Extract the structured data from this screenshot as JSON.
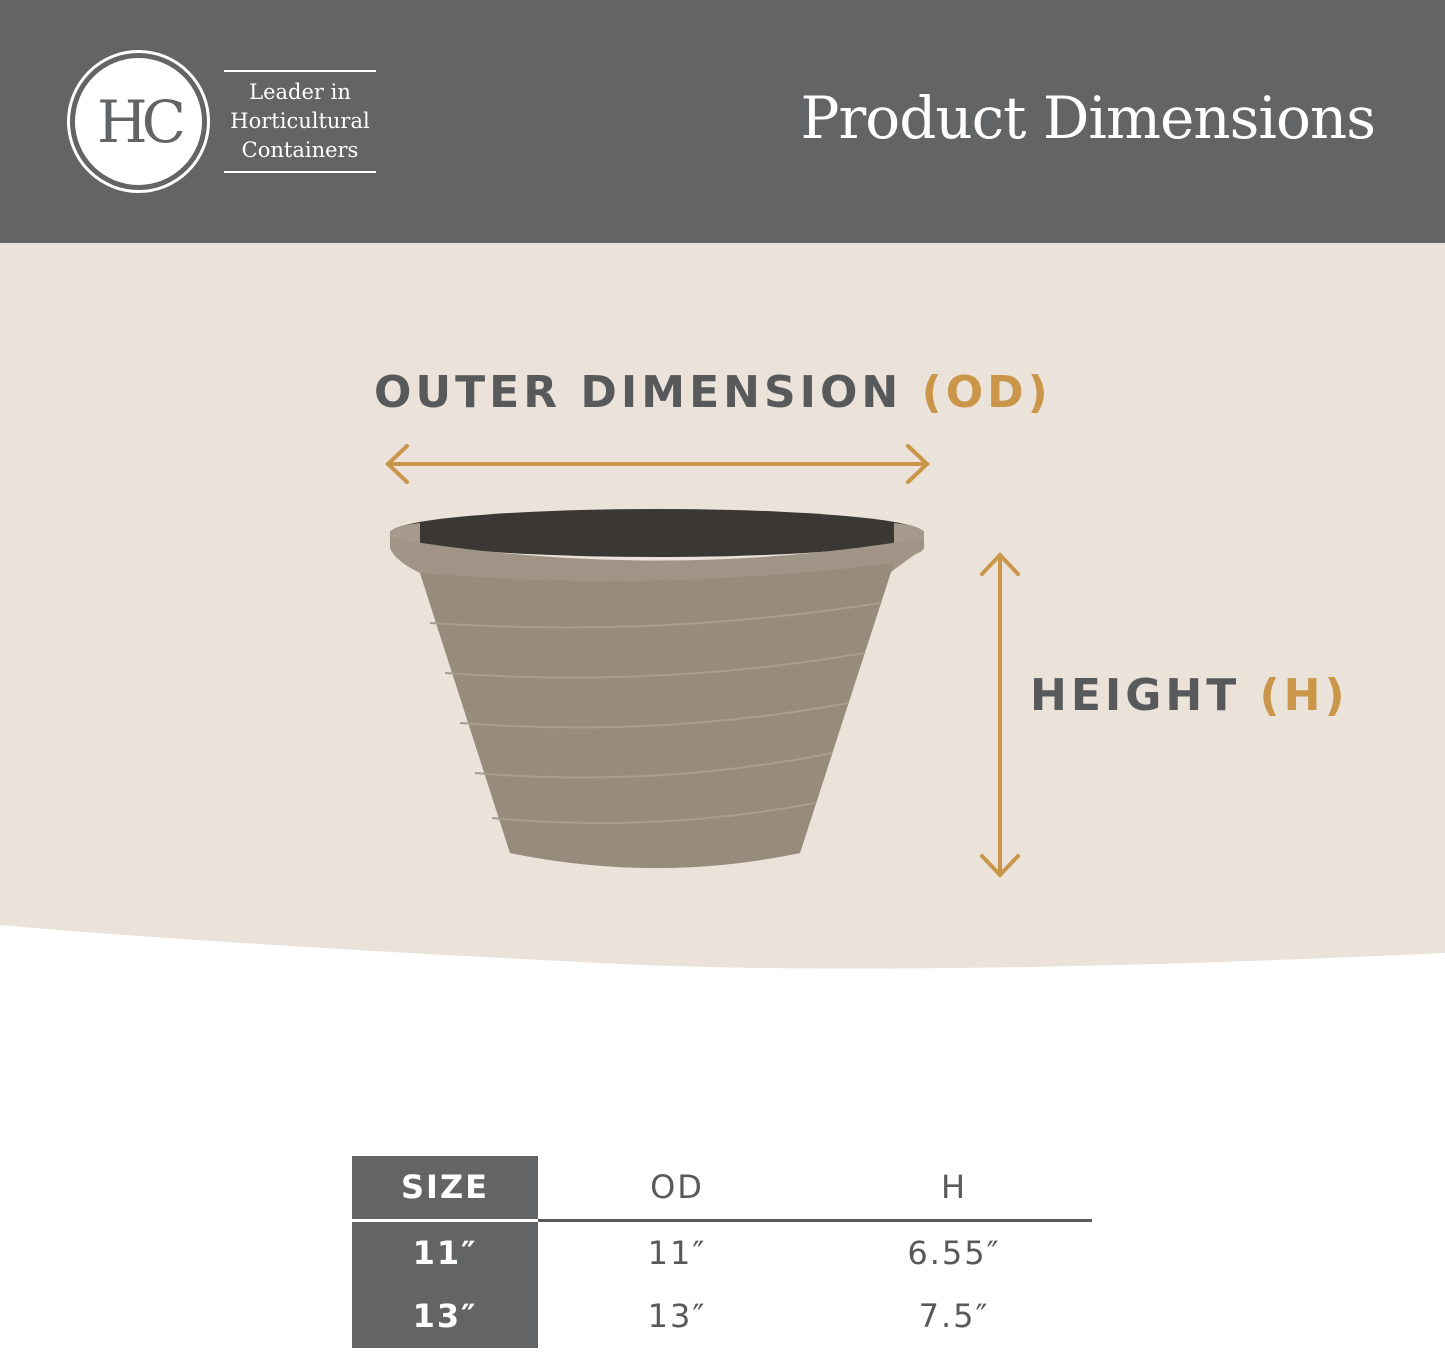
{
  "header": {
    "logo_text": "HC",
    "tagline": [
      "Leader in",
      "Horticultural",
      "Containers"
    ],
    "title": "Product Dimensions"
  },
  "diagram": {
    "od_label": "OUTER DIMENSION",
    "od_abbr": "(OD)",
    "h_label": "HEIGHT",
    "h_abbr": "(H)",
    "accent_color": "#c9964a"
  },
  "table": {
    "headers": [
      "SIZE",
      "OD",
      "H"
    ],
    "rows": [
      [
        "11″",
        "11″",
        "6.55″"
      ],
      [
        "13″",
        "13″",
        "7.5″"
      ]
    ]
  }
}
